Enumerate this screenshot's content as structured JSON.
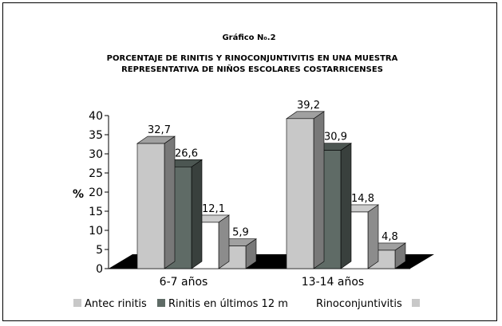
{
  "chart_data": {
    "type": "bar",
    "title": "PORCENTAJE DE RINITIS Y RINOCONJUNTIVITIS EN UNA MUESTRA",
    "subtitle": "REPRESENTATIVA DE NIÑOS ESCOLARES COSTARRICENSES",
    "caption": "Gráfico N₀.2",
    "ylabel": "%",
    "xlabel": "",
    "ylim": [
      0,
      40
    ],
    "yticks": [
      "0",
      "5",
      "10",
      "15",
      "20",
      "25",
      "30",
      "35",
      "40"
    ],
    "categories": [
      "6-7 años",
      "13-14 años"
    ],
    "series": [
      {
        "name": "Antec rinitis",
        "values": [
          32.7,
          39.2
        ],
        "labels": [
          "32,7",
          "39,2"
        ],
        "color": "#c8c8c8"
      },
      {
        "name": "Rinitis en últimos 12 m",
        "values": [
          26.6,
          30.9
        ],
        "labels": [
          "26,6",
          "30,9"
        ],
        "color": "#5f6b66"
      },
      {
        "name": "Rinoconjuntivitis",
        "values": [
          12.1,
          14.8
        ],
        "labels": [
          "12,1",
          "14,8"
        ],
        "color": "#ffffff"
      },
      {
        "name": "",
        "values": [
          5.9,
          4.8
        ],
        "labels": [
          "5,9",
          "4,8"
        ],
        "color": "#c8c8c8"
      }
    ],
    "grid": false,
    "legend_position": "bottom"
  }
}
